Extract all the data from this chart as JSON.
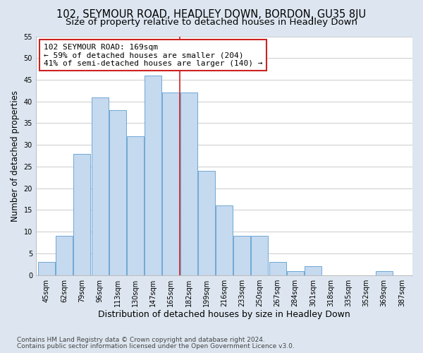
{
  "title": "102, SEYMOUR ROAD, HEADLEY DOWN, BORDON, GU35 8JU",
  "subtitle": "Size of property relative to detached houses in Headley Down",
  "xlabel": "Distribution of detached houses by size in Headley Down",
  "ylabel": "Number of detached properties",
  "footnote1": "Contains HM Land Registry data © Crown copyright and database right 2024.",
  "footnote2": "Contains public sector information licensed under the Open Government Licence v3.0.",
  "bar_labels": [
    "45sqm",
    "62sqm",
    "79sqm",
    "96sqm",
    "113sqm",
    "130sqm",
    "147sqm",
    "165sqm",
    "182sqm",
    "199sqm",
    "216sqm",
    "233sqm",
    "250sqm",
    "267sqm",
    "284sqm",
    "301sqm",
    "318sqm",
    "335sqm",
    "352sqm",
    "369sqm",
    "387sqm"
  ],
  "bar_values": [
    3,
    9,
    28,
    41,
    38,
    32,
    46,
    42,
    42,
    24,
    16,
    9,
    9,
    3,
    1,
    2,
    0,
    0,
    0,
    1,
    0
  ],
  "bar_color": "#c5d9ef",
  "bar_edgecolor": "#6fa8d4",
  "vline_color": "#cc2222",
  "vline_x": 7.5,
  "annot_title": "102 SEYMOUR ROAD: 169sqm",
  "annot_line2": "← 59% of detached houses are smaller (204)",
  "annot_line3": "41% of semi-detached houses are larger (140) →",
  "annot_box_facecolor": "#ffffff",
  "annot_box_edgecolor": "#cc2222",
  "ylim": [
    0,
    55
  ],
  "yticks": [
    0,
    5,
    10,
    15,
    20,
    25,
    30,
    35,
    40,
    45,
    50,
    55
  ],
  "fig_bg_color": "#dde6f0",
  "plot_bg_color": "#ffffff",
  "grid_color": "#cccccc",
  "title_fontsize": 10.5,
  "subtitle_fontsize": 9.5,
  "xlabel_fontsize": 9,
  "ylabel_fontsize": 8.5,
  "tick_fontsize": 7,
  "annot_fontsize": 8,
  "footnote_fontsize": 6.5
}
